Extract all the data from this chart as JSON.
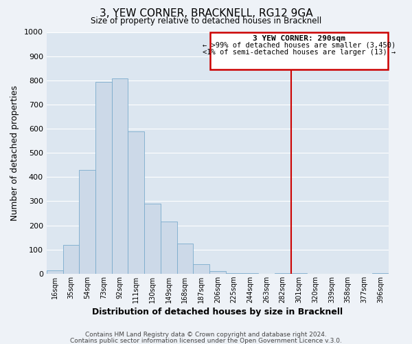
{
  "title": "3, YEW CORNER, BRACKNELL, RG12 9GA",
  "subtitle": "Size of property relative to detached houses in Bracknell",
  "xlabel": "Distribution of detached houses by size in Bracknell",
  "ylabel": "Number of detached properties",
  "bar_color": "#ccd9e8",
  "bar_edge_color": "#7aabcc",
  "bg_color": "#dce6f0",
  "fig_bg_color": "#eef2f7",
  "grid_color": "#ffffff",
  "categories": [
    "16sqm",
    "35sqm",
    "54sqm",
    "73sqm",
    "92sqm",
    "111sqm",
    "130sqm",
    "149sqm",
    "168sqm",
    "187sqm",
    "206sqm",
    "225sqm",
    "244sqm",
    "263sqm",
    "282sqm",
    "301sqm",
    "320sqm",
    "339sqm",
    "358sqm",
    "377sqm",
    "396sqm"
  ],
  "values": [
    15,
    120,
    430,
    795,
    808,
    590,
    290,
    215,
    125,
    40,
    12,
    3,
    1,
    0,
    2,
    1,
    0,
    0,
    0,
    0,
    2
  ],
  "ylim": [
    0,
    1000
  ],
  "yticks": [
    0,
    100,
    200,
    300,
    400,
    500,
    600,
    700,
    800,
    900,
    1000
  ],
  "vline_x": 14.5,
  "vline_color": "#cc0000",
  "annotation_title": "3 YEW CORNER: 290sqm",
  "annotation_line1": "← >99% of detached houses are smaller (3,450)",
  "annotation_line2": "<1% of semi-detached houses are larger (13) →",
  "annotation_box_color": "#cc0000",
  "footer1": "Contains HM Land Registry data © Crown copyright and database right 2024.",
  "footer2": "Contains public sector information licensed under the Open Government Licence v.3.0."
}
